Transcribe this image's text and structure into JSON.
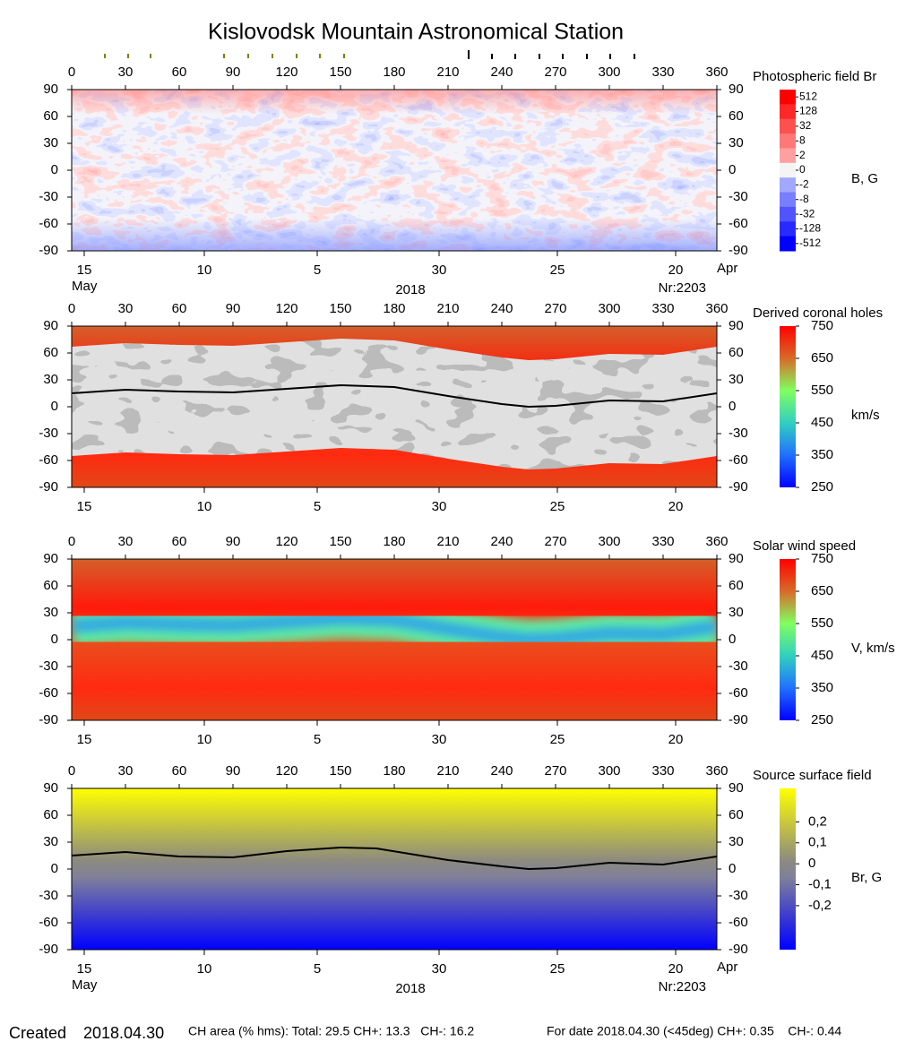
{
  "title": "Kislovodsk Mountain Astronomical Station",
  "chart_data": [
    {
      "type": "heatmap",
      "title": "Photospheric field Br",
      "xlim": [
        0,
        360
      ],
      "xticks": [
        0,
        30,
        60,
        90,
        120,
        150,
        180,
        210,
        240,
        270,
        300,
        330,
        360
      ],
      "ylim": [
        -90,
        90
      ],
      "yticks": [
        90,
        60,
        30,
        0,
        -30,
        -60,
        -90
      ],
      "date_ticks": [
        {
          "value": 7,
          "label": "15"
        },
        {
          "value": 74,
          "label": "10"
        },
        {
          "value": 137,
          "label": "5"
        },
        {
          "value": 205,
          "label": "30"
        },
        {
          "value": 271,
          "label": "25"
        },
        {
          "value": 337,
          "label": "20"
        }
      ],
      "date_labels": [
        "May",
        "2018",
        "Nr:2203",
        "Apr"
      ],
      "colorbar": {
        "label": "B, G",
        "ticks": [
          512,
          128,
          32,
          8,
          2,
          0,
          -2,
          -8,
          -32,
          -128,
          -512
        ]
      }
    },
    {
      "type": "heatmap",
      "title": "Derived coronal holes",
      "xlim": [
        0,
        360
      ],
      "xticks": [
        0,
        30,
        60,
        90,
        120,
        150,
        180,
        210,
        240,
        270,
        300,
        330,
        360
      ],
      "ylim": [
        -90,
        90
      ],
      "yticks": [
        90,
        60,
        30,
        0,
        -30,
        -60,
        -90
      ],
      "date_ticks": [
        {
          "value": 7,
          "label": "15"
        },
        {
          "value": 74,
          "label": "10"
        },
        {
          "value": 137,
          "label": "5"
        },
        {
          "value": 205,
          "label": "30"
        },
        {
          "value": 271,
          "label": "25"
        },
        {
          "value": 337,
          "label": "20"
        }
      ],
      "neutral_line": {
        "x": [
          0,
          30,
          60,
          90,
          120,
          150,
          180,
          210,
          240,
          255,
          270,
          300,
          330,
          360
        ],
        "values": [
          15,
          19,
          17,
          16,
          20,
          24,
          22,
          12,
          3,
          0,
          1,
          7,
          6,
          15
        ]
      },
      "colorbar": {
        "label": "km/s",
        "lim": [
          250,
          750
        ],
        "ticks": [
          750,
          650,
          550,
          450,
          350,
          250
        ]
      }
    },
    {
      "type": "heatmap",
      "title": "Solar wind speed",
      "xlim": [
        0,
        360
      ],
      "xticks": [
        0,
        30,
        60,
        90,
        120,
        150,
        180,
        210,
        240,
        270,
        300,
        330,
        360
      ],
      "ylim": [
        -90,
        90
      ],
      "yticks": [
        90,
        60,
        30,
        0,
        -30,
        -60,
        -90
      ],
      "date_ticks": [
        {
          "value": 7,
          "label": "15"
        },
        {
          "value": 74,
          "label": "10"
        },
        {
          "value": 137,
          "label": "5"
        },
        {
          "value": 205,
          "label": "30"
        },
        {
          "value": 271,
          "label": "25"
        },
        {
          "value": 337,
          "label": "20"
        }
      ],
      "colorbar": {
        "label": "V, km/s",
        "lim": [
          250,
          750
        ],
        "ticks": [
          750,
          650,
          550,
          450,
          350,
          250
        ]
      }
    },
    {
      "type": "heatmap",
      "title": "Source surface field",
      "xlim": [
        0,
        360
      ],
      "xticks": [
        0,
        30,
        60,
        90,
        120,
        150,
        180,
        210,
        240,
        270,
        300,
        330,
        360
      ],
      "ylim": [
        -90,
        90
      ],
      "yticks": [
        90,
        60,
        30,
        0,
        -30,
        -60,
        -90
      ],
      "date_ticks": [
        {
          "value": 7,
          "label": "15"
        },
        {
          "value": 74,
          "label": "10"
        },
        {
          "value": 137,
          "label": "5"
        },
        {
          "value": 205,
          "label": "30"
        },
        {
          "value": 271,
          "label": "25"
        },
        {
          "value": 337,
          "label": "20"
        }
      ],
      "date_labels": [
        "May",
        "2018",
        "Nr:2203",
        "Apr"
      ],
      "neutral_line": {
        "x": [
          0,
          30,
          60,
          90,
          120,
          150,
          170,
          210,
          240,
          255,
          270,
          300,
          330,
          360
        ],
        "values": [
          15,
          19,
          14,
          13,
          20,
          24,
          23,
          10,
          3,
          0,
          1,
          7,
          5,
          14
        ]
      },
      "colorbar": {
        "label": "Br, G",
        "lim": [
          -0.41,
          0.36
        ],
        "ticks": [
          {
            "value": 0.2,
            "label": "0,2"
          },
          {
            "value": 0.1,
            "label": "0,1"
          },
          0,
          {
            "value": -0.1,
            "label": "-0,1"
          },
          {
            "value": -0.2,
            "label": "-0,2"
          }
        ]
      }
    }
  ],
  "footer": {
    "created_label": "Created",
    "created_date": "2018.04.30",
    "ch_area": "CH area (% hms): Total: 29.5 CH+: 13.3   CH-: 16.2",
    "for_date": "For date 2018.04.30 (<45deg) CH+: 0.35    CH-: 0.44"
  }
}
